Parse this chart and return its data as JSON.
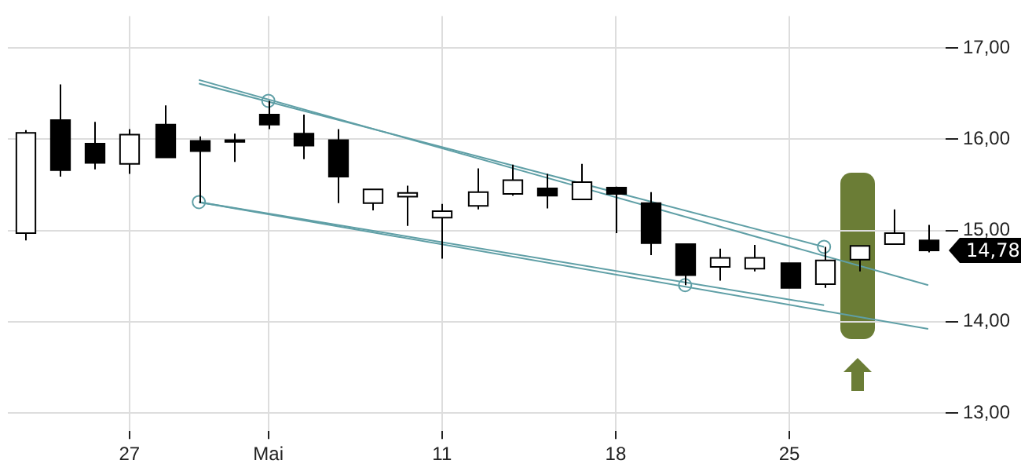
{
  "chart_data": {
    "type": "candlestick",
    "colors": [
      "#ffffff",
      "#000000",
      "#000000",
      "#ffffff",
      "#000000",
      "#000000",
      "#000000",
      "#000000",
      "#000000",
      "#000000",
      "#ffffff",
      "#ffffff",
      "#ffffff",
      "#ffffff",
      "#ffffff",
      "#000000",
      "#ffffff",
      "#000000",
      "#000000",
      "#000000",
      "#ffffff",
      "#ffffff",
      "#000000",
      "#ffffff",
      "#ffffff",
      "#ffffff",
      "#000000"
    ],
    "categories": [
      null,
      null,
      null,
      "27",
      null,
      null,
      null,
      "Mai",
      null,
      null,
      null,
      null,
      "11",
      null,
      null,
      null,
      null,
      "18",
      null,
      null,
      null,
      null,
      "25",
      null,
      null,
      null,
      null
    ],
    "ohlc": [
      [
        14.97,
        16.1,
        14.89,
        16.07
      ],
      [
        16.21,
        16.6,
        15.59,
        15.66
      ],
      [
        15.95,
        16.19,
        15.67,
        15.74
      ],
      [
        15.73,
        16.11,
        15.62,
        16.05
      ],
      [
        16.16,
        16.37,
        15.8,
        15.8
      ],
      [
        15.98,
        16.03,
        15.3,
        15.87
      ],
      [
        15.99,
        16.06,
        15.75,
        15.97
      ],
      [
        16.27,
        16.42,
        16.11,
        16.16
      ],
      [
        16.06,
        16.27,
        15.78,
        15.93
      ],
      [
        15.99,
        16.11,
        15.3,
        15.59
      ],
      [
        15.3,
        15.45,
        15.22,
        15.45
      ],
      [
        15.37,
        15.49,
        15.05,
        15.41
      ],
      [
        15.14,
        15.29,
        14.69,
        15.21
      ],
      [
        15.27,
        15.68,
        15.23,
        15.42
      ],
      [
        15.4,
        15.72,
        15.38,
        15.55
      ],
      [
        15.46,
        15.62,
        15.24,
        15.38
      ],
      [
        15.34,
        15.73,
        15.34,
        15.53
      ],
      [
        15.47,
        15.48,
        14.97,
        15.4
      ],
      [
        15.3,
        15.42,
        14.73,
        14.86
      ],
      [
        14.85,
        14.85,
        14.4,
        14.51
      ],
      [
        14.6,
        14.8,
        14.45,
        14.7
      ],
      [
        14.58,
        14.84,
        14.55,
        14.7
      ],
      [
        14.64,
        14.64,
        14.37,
        14.37
      ],
      [
        14.41,
        14.82,
        14.37,
        14.67
      ],
      [
        14.68,
        14.83,
        14.55,
        14.83
      ],
      [
        14.85,
        15.23,
        14.85,
        14.97
      ],
      [
        14.89,
        15.06,
        14.76,
        14.78
      ]
    ],
    "series": [
      {
        "type": "line",
        "color": "#5f9fa6",
        "values": [
          null,
          null,
          null,
          null,
          null,
          16.65,
          null,
          null,
          null,
          null,
          null,
          null,
          null,
          null,
          null,
          null,
          null,
          null,
          null,
          null,
          null,
          null,
          null,
          null,
          null,
          null,
          14.4
        ],
        "marker": "none"
      },
      {
        "type": "line",
        "color": "#5f9fa6",
        "values": [
          null,
          null,
          null,
          null,
          null,
          16.61,
          null,
          null,
          null,
          null,
          null,
          null,
          null,
          null,
          null,
          null,
          null,
          null,
          null,
          null,
          null,
          null,
          null,
          14.82,
          null,
          null,
          null
        ],
        "marker": "none"
      },
      {
        "type": "line",
        "color": "#5f9fa6",
        "values": [
          null,
          null,
          null,
          null,
          null,
          15.31,
          null,
          null,
          null,
          null,
          null,
          null,
          null,
          null,
          null,
          null,
          null,
          null,
          null,
          null,
          null,
          null,
          null,
          null,
          null,
          null,
          13.92
        ],
        "marker": "none"
      },
      {
        "type": "line",
        "color": "#5f9fa6",
        "values": [
          null,
          null,
          null,
          null,
          null,
          15.31,
          null,
          null,
          null,
          null,
          null,
          null,
          null,
          null,
          null,
          null,
          null,
          null,
          null,
          null,
          null,
          null,
          null,
          14.18,
          null,
          null,
          null
        ],
        "marker": "none"
      },
      {
        "type": "scatter",
        "color": "#5f9fa6",
        "values": [
          null,
          null,
          null,
          null,
          null,
          15.31,
          null,
          16.42,
          null,
          null,
          null,
          null,
          null,
          null,
          null,
          null,
          null,
          null,
          null,
          14.4,
          null,
          null,
          null,
          14.82,
          null,
          null,
          null
        ],
        "marker": "circle"
      }
    ],
    "ylim": [
      12.8,
      17.35
    ],
    "yticks": [
      {
        "value": 13,
        "label": "13,00"
      },
      {
        "value": 14,
        "label": "14,00"
      },
      {
        "value": 15,
        "label": "15,00"
      },
      {
        "value": 16,
        "label": "16,00"
      },
      {
        "value": 17,
        "label": "17,00"
      }
    ],
    "grid": true,
    "legend": false,
    "annotations": [
      "14,78"
    ]
  }
}
